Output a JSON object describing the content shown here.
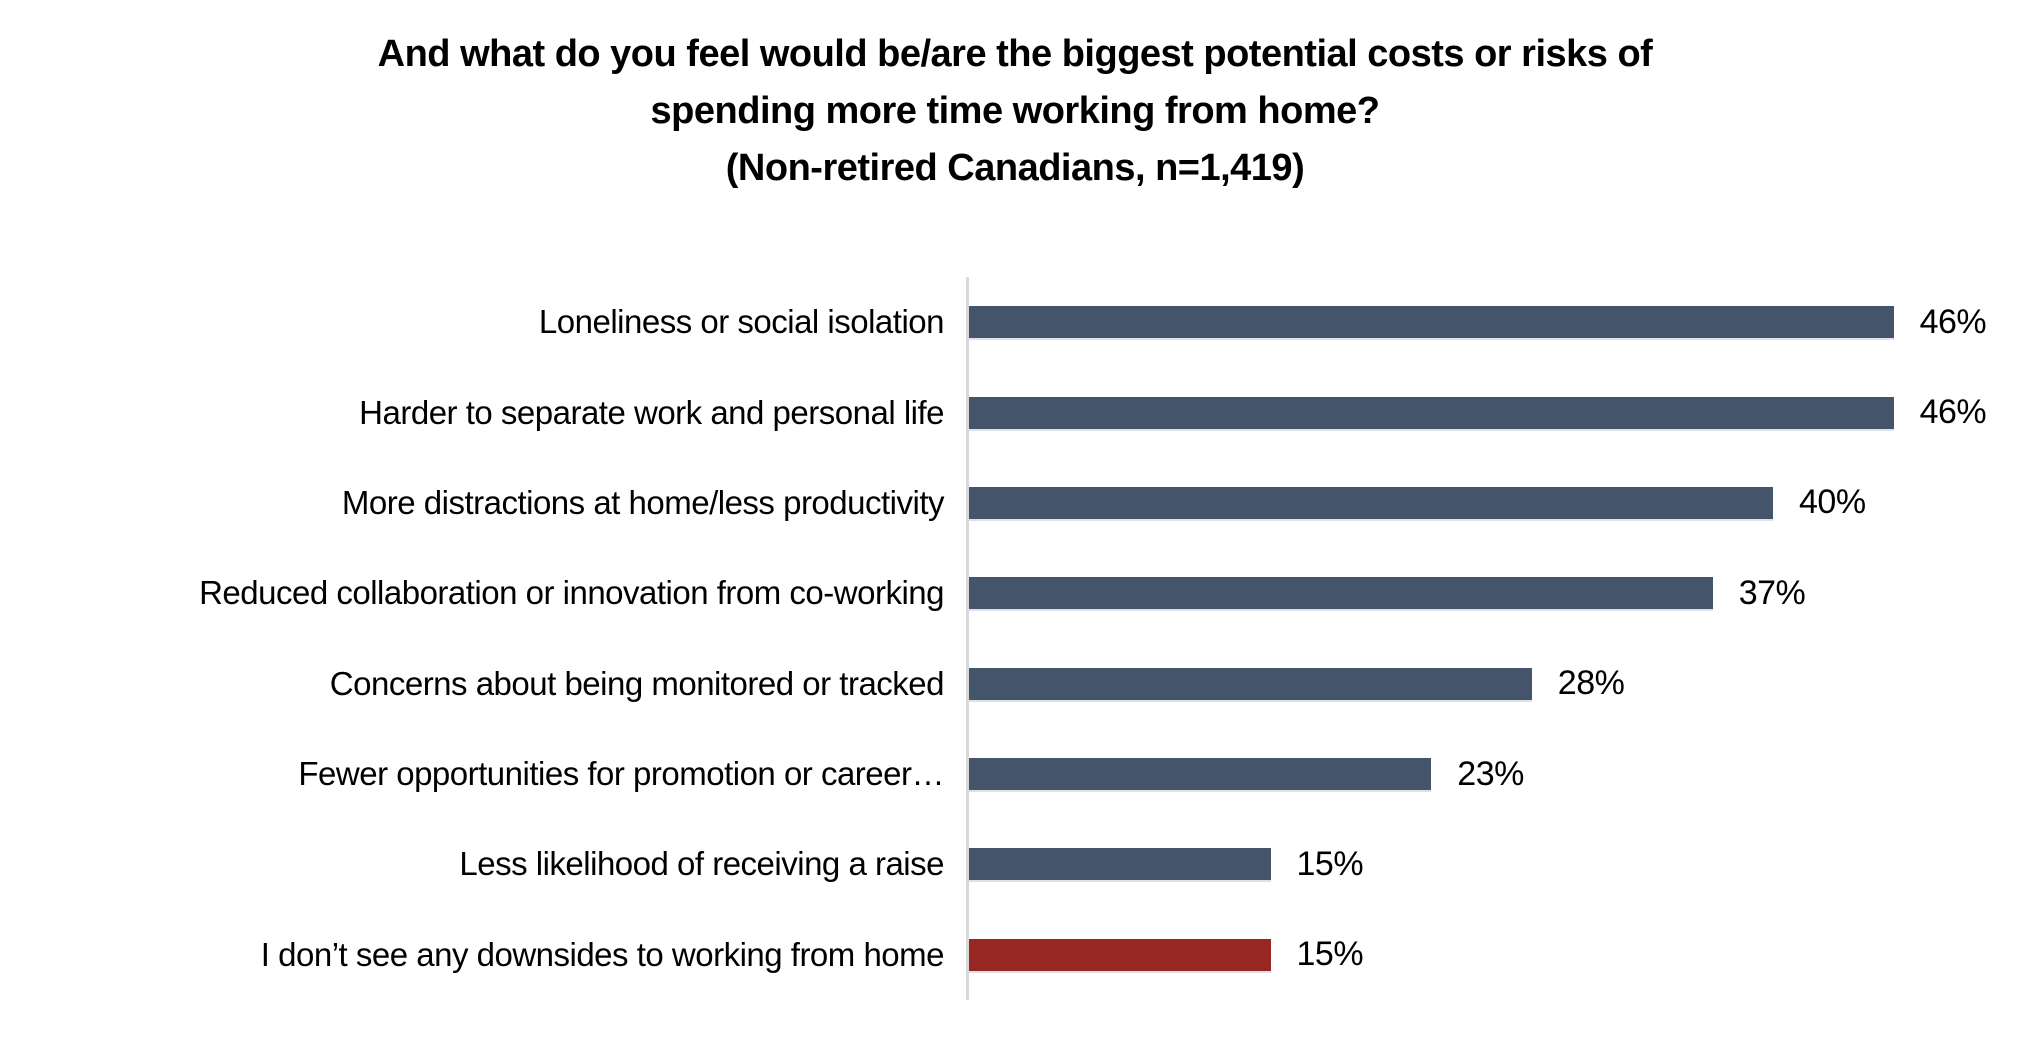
{
  "page": {
    "background": "#FFFFFF"
  },
  "chart_data": {
    "type": "bar",
    "orientation": "horizontal",
    "title_lines": [
      "And what do you feel would be/are the biggest potential costs or risks of",
      "spending more time working from home?",
      "(Non-retired Canadians, n=1,419)"
    ],
    "categories": [
      "Loneliness or social isolation",
      "Harder to separate work and personal life",
      "More distractions at home/less productivity",
      "Reduced collaboration or innovation from co-working",
      "Concerns about being monitored or tracked",
      "Fewer opportunities for promotion or career…",
      "Less likelihood of receiving a raise",
      "I don’t see any downsides to working from home"
    ],
    "values": [
      46,
      46,
      40,
      37,
      28,
      23,
      15,
      15
    ],
    "value_labels": [
      "46%",
      "46%",
      "40%",
      "37%",
      "28%",
      "23%",
      "15%",
      "15%"
    ],
    "bar_colors": [
      "#44546A",
      "#44546A",
      "#44546A",
      "#44546A",
      "#44546A",
      "#44546A",
      "#44546A",
      "#962723"
    ],
    "colors": {
      "primary_bar": "#44546A",
      "highlight_bar": "#962723",
      "axis_line": "#D9D9D9",
      "text": "#000000"
    },
    "xlabel": "",
    "ylabel": "",
    "xlim": [
      0,
      50
    ],
    "grid": false,
    "legend": false,
    "data_labels": "outside-end"
  }
}
